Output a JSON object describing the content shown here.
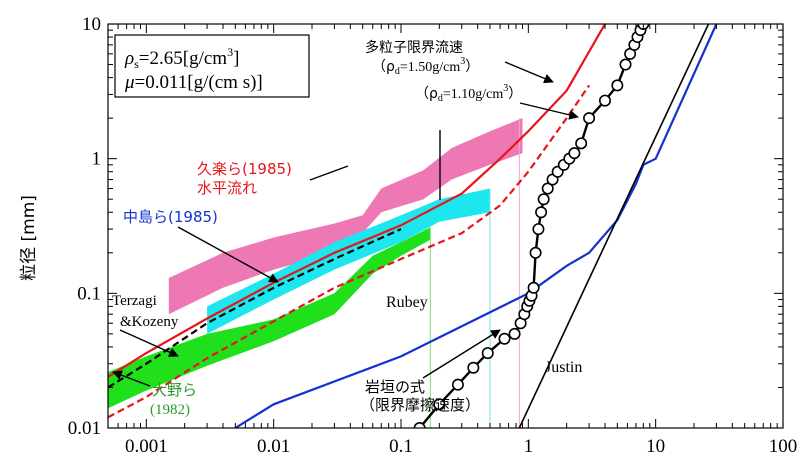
{
  "chart_data": {
    "type": "line",
    "x_scale": "log",
    "y_scale": "log",
    "xlim": [
      0.0005,
      100
    ],
    "ylim": [
      0.01,
      10
    ],
    "ylabel": "粒径 [mm]",
    "xlabel": "",
    "x_ticks": [
      "0.001",
      "0.01",
      "0.1",
      "1",
      "10",
      "100"
    ],
    "y_ticks": [
      "0.01",
      "0.1",
      "1",
      "10"
    ],
    "grid": false,
    "parameter_box": {
      "line1_symbol": "ρ",
      "line1_sub": "s",
      "line1_value": "=2.65[g/cm",
      "line1_sup": "3",
      "line1_end": "]",
      "line2_symbol": "μ",
      "line2_value": "=0.011[g/(cm s)]"
    },
    "series": [
      {
        "key": "multi_150",
        "color": "#e8141a",
        "style": "solid",
        "points": [
          [
            0.0005,
            0.024
          ],
          [
            0.001,
            0.036
          ],
          [
            0.003,
            0.065
          ],
          [
            0.01,
            0.12
          ],
          [
            0.03,
            0.2
          ],
          [
            0.1,
            0.32
          ],
          [
            0.3,
            0.55
          ],
          [
            0.6,
            1.0
          ],
          [
            1.0,
            1.6
          ],
          [
            2.0,
            3.2
          ],
          [
            4.0,
            10
          ]
        ]
      },
      {
        "key": "multi_110",
        "color": "#e8141a",
        "style": "dashed",
        "points": [
          [
            0.0005,
            0.012
          ],
          [
            0.001,
            0.017
          ],
          [
            0.003,
            0.033
          ],
          [
            0.01,
            0.062
          ],
          [
            0.03,
            0.11
          ],
          [
            0.1,
            0.18
          ],
          [
            0.3,
            0.28
          ],
          [
            0.6,
            0.45
          ],
          [
            1.0,
            0.8
          ],
          [
            2.0,
            2.0
          ],
          [
            3.0,
            3.5
          ]
        ]
      },
      {
        "key": "kozeny",
        "color": "#000000",
        "style": "dashed",
        "points": [
          [
            0.0005,
            0.02
          ],
          [
            0.001,
            0.03
          ],
          [
            0.003,
            0.06
          ],
          [
            0.01,
            0.11
          ],
          [
            0.03,
            0.18
          ],
          [
            0.1,
            0.3
          ]
        ]
      },
      {
        "key": "rubey",
        "color": "#1530d0",
        "style": "solid",
        "points": [
          [
            0.005,
            0.01
          ],
          [
            0.01,
            0.015
          ],
          [
            0.1,
            0.034
          ],
          [
            1.0,
            0.1
          ],
          [
            2.0,
            0.16
          ],
          [
            3.0,
            0.2
          ],
          [
            5.0,
            0.35
          ],
          [
            7.0,
            0.65
          ],
          [
            8.0,
            0.9
          ],
          [
            10,
            1.0
          ],
          [
            30,
            10
          ]
        ]
      },
      {
        "key": "justin",
        "color": "#000000",
        "style": "solid",
        "points": [
          [
            0.85,
            0.01
          ],
          [
            26,
            10
          ]
        ]
      }
    ],
    "iwagaki_points": [
      [
        0.14,
        0.01
      ],
      [
        0.2,
        0.015
      ],
      [
        0.28,
        0.021
      ],
      [
        0.37,
        0.028
      ],
      [
        0.48,
        0.036
      ],
      [
        0.65,
        0.046
      ],
      [
        0.78,
        0.05
      ],
      [
        0.87,
        0.06
      ],
      [
        0.93,
        0.07
      ],
      [
        0.98,
        0.08
      ],
      [
        1.02,
        0.088
      ],
      [
        1.06,
        0.096
      ],
      [
        1.1,
        0.11
      ],
      [
        1.14,
        0.2
      ],
      [
        1.2,
        0.3
      ],
      [
        1.26,
        0.4
      ],
      [
        1.32,
        0.5
      ],
      [
        1.42,
        0.6
      ],
      [
        1.55,
        0.7
      ],
      [
        1.7,
        0.8
      ],
      [
        1.9,
        0.9
      ],
      [
        2.1,
        1.0
      ],
      [
        2.3,
        1.1
      ],
      [
        2.6,
        1.3
      ],
      [
        3.0,
        2.0
      ],
      [
        4.0,
        2.7
      ],
      [
        5.0,
        3.5
      ],
      [
        5.8,
        5.0
      ],
      [
        6.3,
        6.0
      ],
      [
        6.8,
        7.0
      ],
      [
        7.2,
        8.0
      ],
      [
        7.6,
        9.0
      ],
      [
        8.0,
        10.0
      ]
    ],
    "bands": [
      {
        "key": "kuraku",
        "color": "#ee78b4",
        "upper": [
          [
            0.0015,
            0.13
          ],
          [
            0.004,
            0.2
          ],
          [
            0.01,
            0.26
          ],
          [
            0.03,
            0.33
          ],
          [
            0.05,
            0.38
          ],
          [
            0.07,
            0.6
          ],
          [
            0.15,
            0.82
          ],
          [
            0.25,
            1.2
          ],
          [
            0.5,
            1.6
          ],
          [
            0.9,
            2.0
          ]
        ],
        "lower": [
          [
            0.0015,
            0.07
          ],
          [
            0.004,
            0.11
          ],
          [
            0.01,
            0.15
          ],
          [
            0.03,
            0.2
          ],
          [
            0.05,
            0.28
          ],
          [
            0.07,
            0.4
          ],
          [
            0.15,
            0.5
          ],
          [
            0.25,
            0.7
          ],
          [
            0.5,
            0.9
          ],
          [
            0.9,
            1.1
          ]
        ]
      },
      {
        "key": "nakajima",
        "color": "#1ee6ee",
        "upper": [
          [
            0.003,
            0.08
          ],
          [
            0.01,
            0.14
          ],
          [
            0.03,
            0.24
          ],
          [
            0.1,
            0.38
          ],
          [
            0.2,
            0.5
          ],
          [
            0.5,
            0.6
          ]
        ],
        "lower": [
          [
            0.003,
            0.05
          ],
          [
            0.01,
            0.09
          ],
          [
            0.03,
            0.15
          ],
          [
            0.1,
            0.24
          ],
          [
            0.2,
            0.34
          ],
          [
            0.5,
            0.4
          ]
        ]
      },
      {
        "key": "ono",
        "color": "#1fe01a",
        "upper": [
          [
            0.0005,
            0.026
          ],
          [
            0.001,
            0.034
          ],
          [
            0.003,
            0.05
          ],
          [
            0.01,
            0.064
          ],
          [
            0.03,
            0.1
          ],
          [
            0.06,
            0.19
          ],
          [
            0.1,
            0.24
          ],
          [
            0.17,
            0.31
          ]
        ],
        "lower": [
          [
            0.0005,
            0.014
          ],
          [
            0.001,
            0.019
          ],
          [
            0.003,
            0.029
          ],
          [
            0.01,
            0.044
          ],
          [
            0.03,
            0.07
          ],
          [
            0.06,
            0.14
          ],
          [
            0.1,
            0.19
          ],
          [
            0.17,
            0.25
          ]
        ]
      }
    ],
    "annotations": {
      "multi_label": "多粒子限界流速",
      "multi_sub_open": "（ρ",
      "multi_sub_d": "d",
      "multi_sub_val150": "=1.50g/cm",
      "multi_sub_sup": "3",
      "multi_sub_close": "）",
      "multi_sub_val110": "=1.10g/cm",
      "kuraku_line1": "久楽ら(1985)",
      "kuraku_line2": "水平流れ",
      "nakajima": "中島ら(1985)",
      "terzaghi_line1": "Terzagi",
      "terzaghi_line2": "&Kozeny",
      "ono_line1": "大野ら",
      "ono_line2": "(1982)",
      "rubey": "Rubey",
      "justin": "Justin",
      "iwagaki_line1": "岩垣の式",
      "iwagaki_line2": "（限界摩擦速度）"
    },
    "colors": {
      "red": "#e8141a",
      "blue": "#1530d0",
      "green_text": "#2a9a2a",
      "black": "#000000"
    }
  }
}
